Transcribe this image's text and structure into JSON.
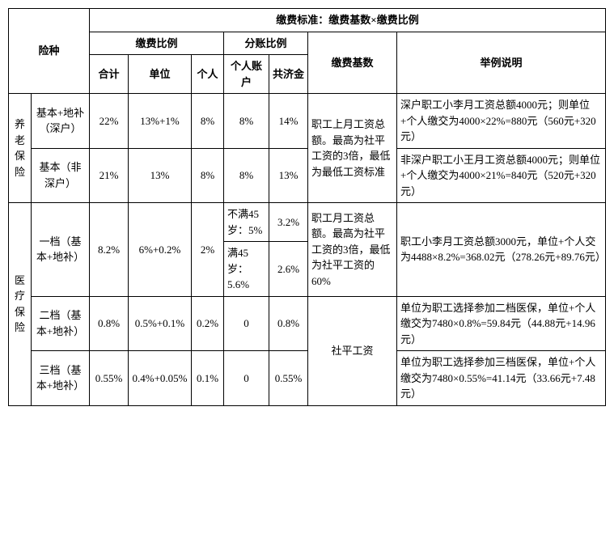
{
  "header": {
    "insurance_type": "险种",
    "standard": "缴费标准：缴费基数×缴费比例",
    "ratio": "缴费比例",
    "split_ratio": "分账比例",
    "total": "合计",
    "unit": "单位",
    "person": "个人",
    "personal_acct": "个人账户",
    "pooling": "共济金",
    "base": "缴费基数",
    "example": "举例说明"
  },
  "pension": {
    "category": "养老保险",
    "row1": {
      "sub": "基本+地补（深户）",
      "total": "22%",
      "unit": "13%+1%",
      "person": "8%",
      "acct": "8%",
      "pool": "14%",
      "example": "深户职工小李月工资总额4000元；则单位+个人缴交为4000×22%=880元（560元+320元）"
    },
    "row2": {
      "sub": "基本（非深户）",
      "total": "21%",
      "unit": "13%",
      "person": "8%",
      "acct": "8%",
      "pool": "13%",
      "example": "非深户职工小王月工资总额4000元；则单位+个人缴交为4000×21%=840元（520元+320元）"
    },
    "base": "职工上月工资总额。最高为社平工资的3倍，最低为最低工资标准"
  },
  "medical": {
    "category": "医疗保险",
    "tier1": {
      "sub": "一档（基本+地补）",
      "total": "8.2%",
      "unit": "6%+0.2%",
      "person": "2%",
      "acct_a": "不满45岁：5%",
      "pool_a": "3.2%",
      "acct_b": "满45岁：5.6%",
      "pool_b": "2.6%",
      "base": "职工月工资总额。最高为社平工资的3倍，最低为社平工资的60%",
      "example": "职工小李月工资总额3000元，单位+个人交为4488×8.2%=368.02元（278.26元+89.76元）"
    },
    "tier2": {
      "sub": "二档（基本+地补）",
      "total": "0.8%",
      "unit": "0.5%+0.1%",
      "person": "0.2%",
      "acct": "0",
      "pool": "0.8%",
      "example": "单位为职工选择参加二档医保，单位+个人缴交为7480×0.8%=59.84元（44.88元+14.96元）"
    },
    "tier3": {
      "sub": "三档（基本+地补）",
      "total": "0.55%",
      "unit": "0.4%+0.05%",
      "person": "0.1%",
      "acct": "0",
      "pool": "0.55%",
      "example": "单位为职工选择参加三档医保，单位+个人缴交为7480×0.55%=41.14元（33.66元+7.48元）"
    },
    "base_shared": "社平工资"
  }
}
